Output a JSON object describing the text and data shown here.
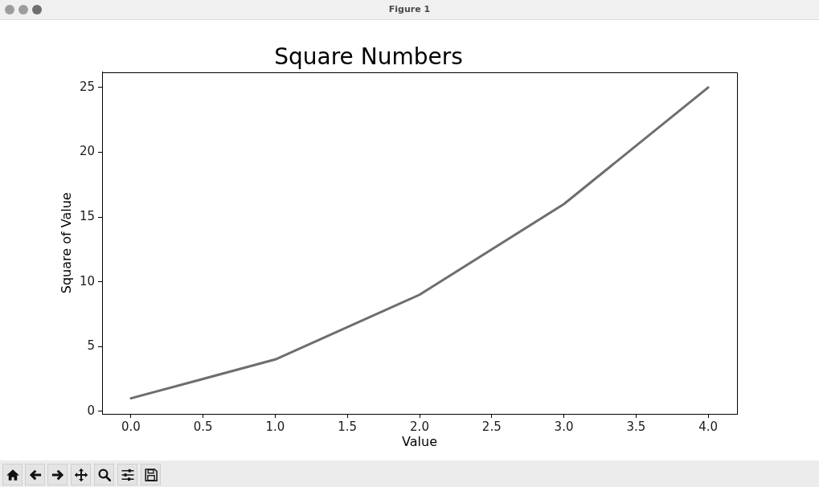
{
  "chart_data": {
    "type": "line",
    "title": "Square Numbers",
    "xlabel": "Value",
    "ylabel": "Square of Value",
    "annotations": [
      "Figure 1"
    ],
    "x": [
      0,
      1,
      2,
      3,
      4
    ],
    "values": [
      1,
      4,
      9,
      16,
      25
    ],
    "color": "#6e6e6e",
    "xlim": [
      -0.2,
      4.2
    ],
    "ylim": [
      -0.2,
      26.2
    ],
    "xticks": [
      {
        "value": 0,
        "label": "0.0"
      },
      0.5,
      {
        "value": 1,
        "label": "1.0"
      },
      1.5,
      {
        "value": 2,
        "label": "2.0"
      },
      2.5,
      {
        "value": 3,
        "label": "3.0"
      },
      3.5,
      {
        "value": 4,
        "label": "4.0"
      }
    ],
    "yticks": [
      0,
      5,
      10,
      15,
      20,
      25
    ]
  }
}
